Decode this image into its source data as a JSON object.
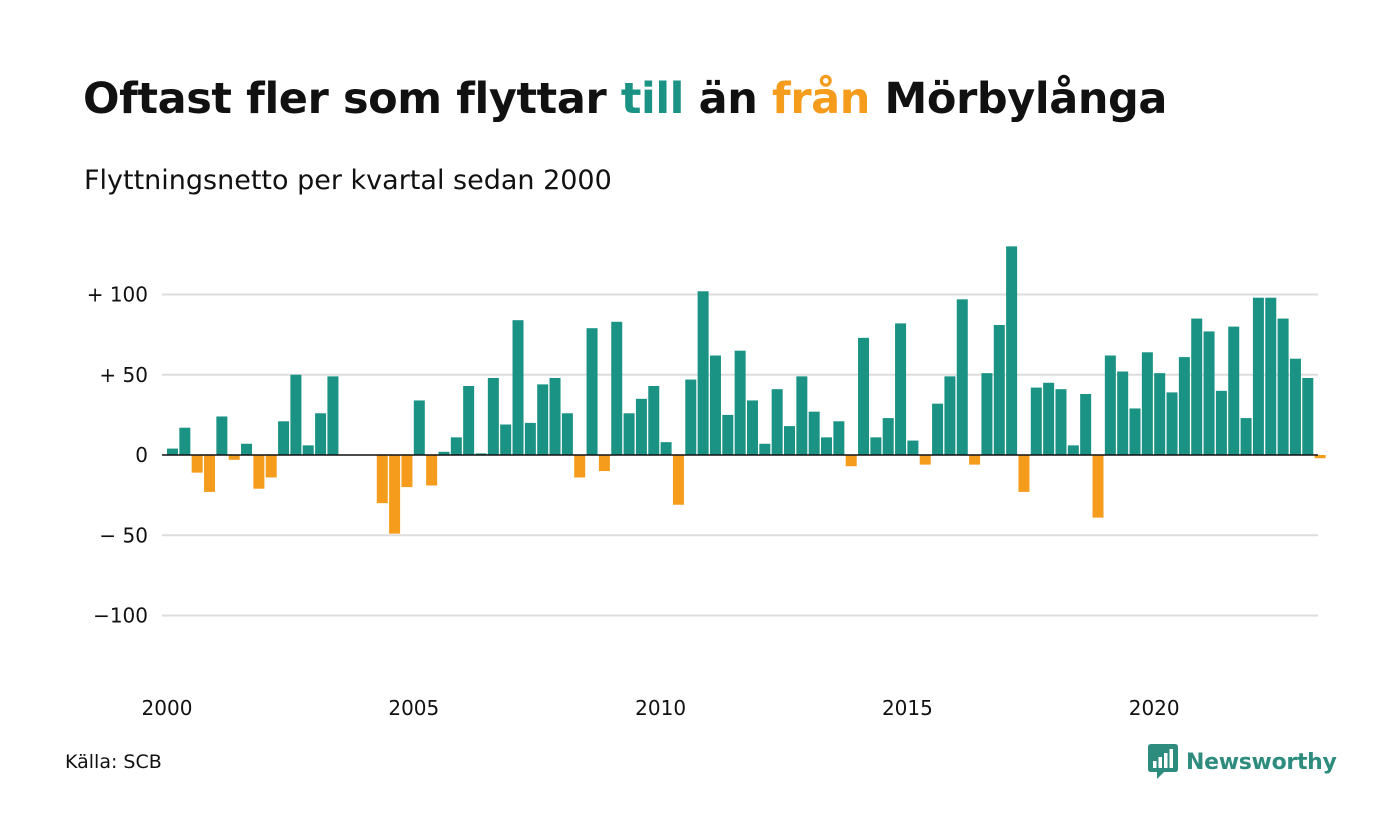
{
  "title": {
    "part1": "Oftast fler som flyttar ",
    "part2": "till",
    "part3": " än ",
    "part4": "från",
    "part5": " Mörbylånga"
  },
  "subtitle": "Flyttningsnetto per kvartal sedan 2000",
  "source": "Källa: SCB",
  "logo": {
    "text": "Newsworthy",
    "icon": "newsworthy-logo-icon"
  },
  "colors": {
    "positive": "#1a9384",
    "negative": "#f59c1c",
    "grid": "#dddddd",
    "baseline": "#111111",
    "logo": "#2e8c7e"
  },
  "chart_data": {
    "type": "bar",
    "title": "Oftast fler som flyttar till än från Mörbylånga",
    "subtitle": "Flyttningsnetto per kvartal sedan 2000",
    "x_start": "2000Q1",
    "x_end": "2023Q2",
    "x_ticks": [
      "2000",
      "2005",
      "2010",
      "2015",
      "2020"
    ],
    "y_ticks": [
      100,
      50,
      0,
      -50,
      -100
    ],
    "y_tick_labels": [
      "+ 100",
      "+  50",
      "0",
      "− 50",
      "−100"
    ],
    "ylim": [
      -120,
      130
    ],
    "grid": true,
    "values": [
      4,
      17,
      -11,
      -23,
      24,
      -3,
      7,
      -21,
      -14,
      21,
      50,
      6,
      26,
      49,
      0,
      0,
      0,
      -30,
      -49,
      -20,
      34,
      -19,
      2,
      11,
      43,
      1,
      48,
      19,
      84,
      20,
      44,
      48,
      26,
      -14,
      79,
      -10,
      83,
      26,
      35,
      43,
      8,
      -31,
      47,
      102,
      62,
      25,
      65,
      34,
      7,
      41,
      18,
      49,
      27,
      11,
      21,
      -7,
      73,
      11,
      23,
      82,
      9,
      -6,
      32,
      49,
      97,
      -6,
      51,
      81,
      130,
      -23,
      42,
      45,
      41,
      6,
      38,
      -39,
      62,
      52,
      29,
      64,
      51,
      39,
      61,
      85,
      77,
      40,
      80,
      23,
      98,
      98,
      85,
      60,
      48,
      -2
    ]
  }
}
